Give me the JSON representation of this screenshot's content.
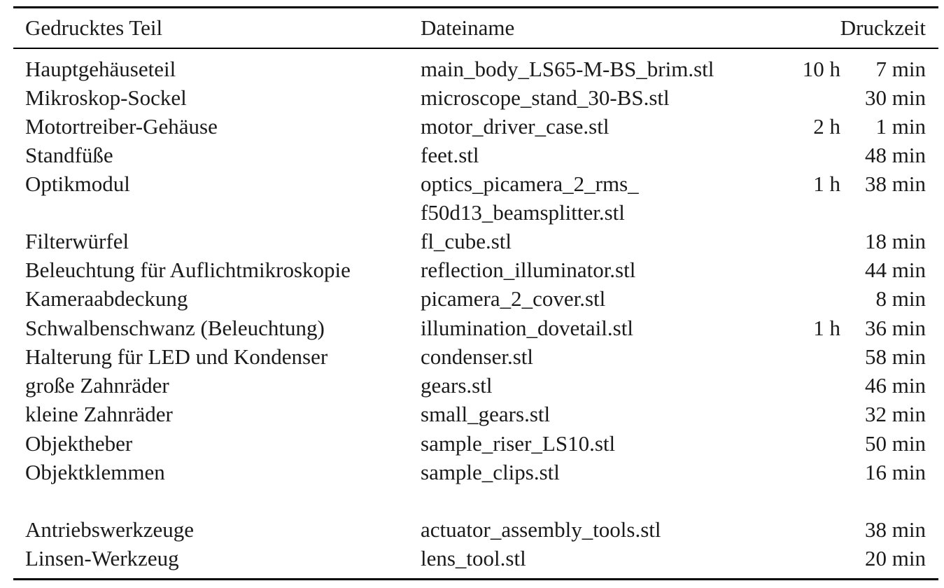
{
  "table": {
    "headers": {
      "part": "Gedrucktes Teil",
      "file": "Dateiname",
      "time": "Druckzeit"
    },
    "rows": [
      {
        "part": "Hauptgehäuseteil",
        "file": "main_body_LS65-M-BS_brim.stl",
        "file2": "",
        "hours": "10 h",
        "mins": "7 min"
      },
      {
        "part": "Mikroskop-Sockel",
        "file": "microscope_stand_30-BS.stl",
        "file2": "",
        "hours": "",
        "mins": "30 min"
      },
      {
        "part": "Motortreiber-Gehäuse",
        "file": "motor_driver_case.stl",
        "file2": "",
        "hours": "2 h",
        "mins": "1 min"
      },
      {
        "part": "Standfüße",
        "file": "feet.stl",
        "file2": "",
        "hours": "",
        "mins": "48 min"
      },
      {
        "part": "Optikmodul",
        "file": "optics_picamera_2_rms_",
        "file2": "f50d13_beamsplitter.stl",
        "hours": "1 h",
        "mins": "38 min"
      },
      {
        "part": "Filterwürfel",
        "file": "fl_cube.stl",
        "file2": "",
        "hours": "",
        "mins": "18 min"
      },
      {
        "part": "Beleuchtung für Auflichtmikroskopie",
        "file": "reflection_illuminator.stl",
        "file2": "",
        "hours": "",
        "mins": "44 min"
      },
      {
        "part": "Kameraabdeckung",
        "file": "picamera_2_cover.stl",
        "file2": "",
        "hours": "",
        "mins": "8 min"
      },
      {
        "part": "Schwalbenschwanz (Beleuchtung)",
        "file": "illumination_dovetail.stl",
        "file2": "",
        "hours": "1 h",
        "mins": "36 min"
      },
      {
        "part": "Halterung für LED und Kondenser",
        "file": "condenser.stl",
        "file2": "",
        "hours": "",
        "mins": "58 min"
      },
      {
        "part": "große Zahnräder",
        "file": "gears.stl",
        "file2": "",
        "hours": "",
        "mins": "46 min"
      },
      {
        "part": "kleine Zahnräder",
        "file": "small_gears.stl",
        "file2": "",
        "hours": "",
        "mins": "32 min"
      },
      {
        "part": "Objektheber",
        "file": "sample_riser_LS10.stl",
        "file2": "",
        "hours": "",
        "mins": "50 min"
      },
      {
        "part": "Objektklemmen",
        "file": "sample_clips.stl",
        "file2": "",
        "hours": "",
        "mins": "16 min"
      },
      {
        "part": "Antriebswerkzeuge",
        "file": "actuator_assembly_tools.stl",
        "file2": "",
        "hours": "",
        "mins": "38 min"
      },
      {
        "part": "Linsen-Werkzeug",
        "file": "lens_tool.stl",
        "file2": "",
        "hours": "",
        "mins": "20 min"
      }
    ]
  }
}
